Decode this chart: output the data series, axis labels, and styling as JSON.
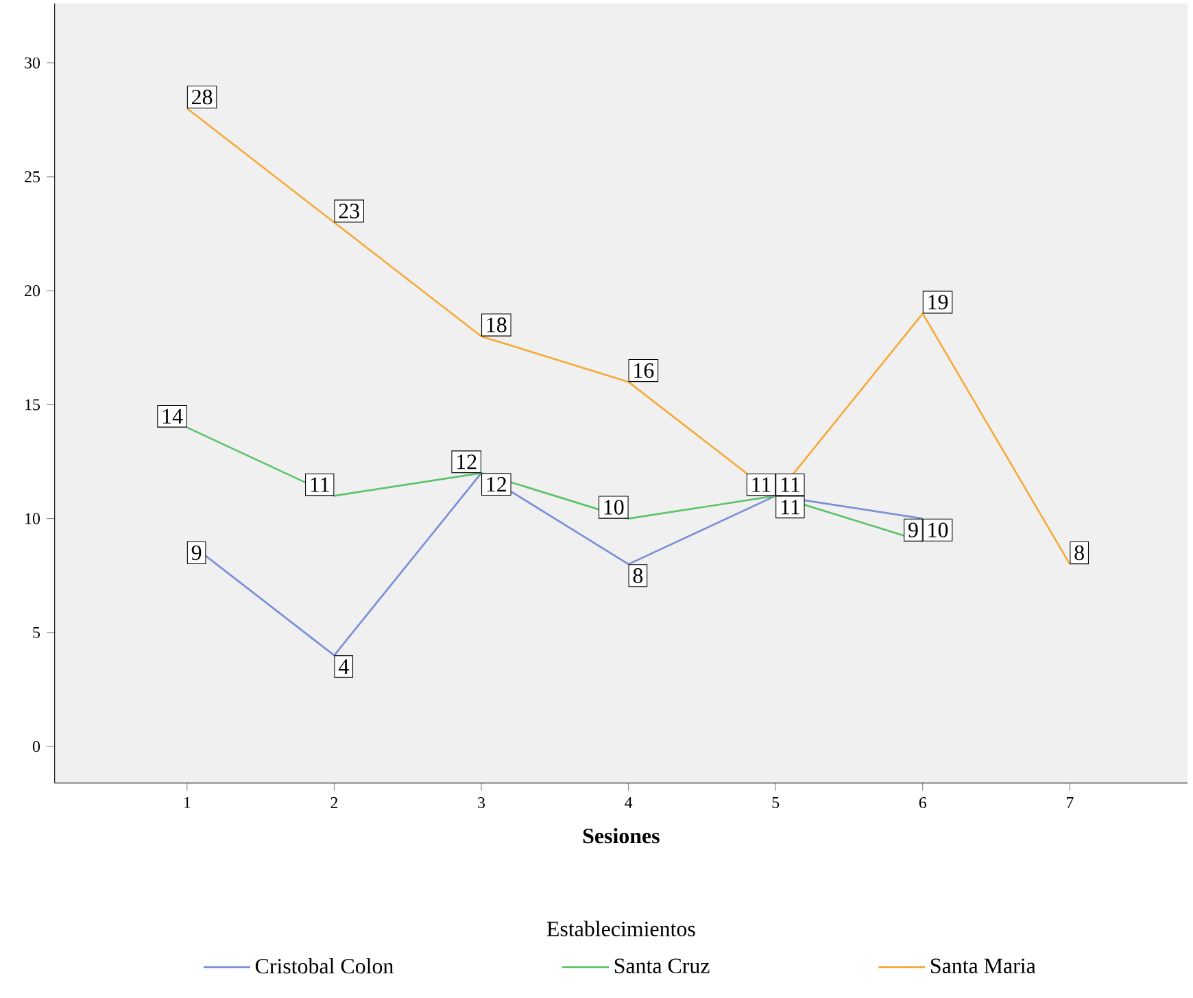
{
  "chart_data": {
    "type": "line",
    "xlabel": "Sesiones",
    "legend_title": "Establecimientos",
    "x": [
      1,
      2,
      3,
      4,
      5,
      6,
      7
    ],
    "series": [
      {
        "name": "Cristobal Colon",
        "color": "#7b8fd6",
        "values": [
          9,
          4,
          12,
          8,
          11,
          10,
          null
        ]
      },
      {
        "name": "Santa Cruz",
        "color": "#5cc46a",
        "values": [
          14,
          11,
          12,
          10,
          11,
          9,
          null
        ]
      },
      {
        "name": "Santa Maria",
        "color": "#f5aa3a",
        "values": [
          28,
          23,
          18,
          16,
          11,
          19,
          8
        ]
      }
    ],
    "xlim": [
      0.1,
      7.8
    ],
    "ylim": [
      -1.6,
      32.6
    ],
    "xticks": [
      1,
      2,
      3,
      4,
      5,
      6,
      7
    ],
    "yticks": [
      0,
      5,
      10,
      15,
      20,
      25,
      30
    ],
    "data_labels": true,
    "legend": "bottom",
    "marker": "none",
    "line_style": "solid",
    "grid": false
  }
}
